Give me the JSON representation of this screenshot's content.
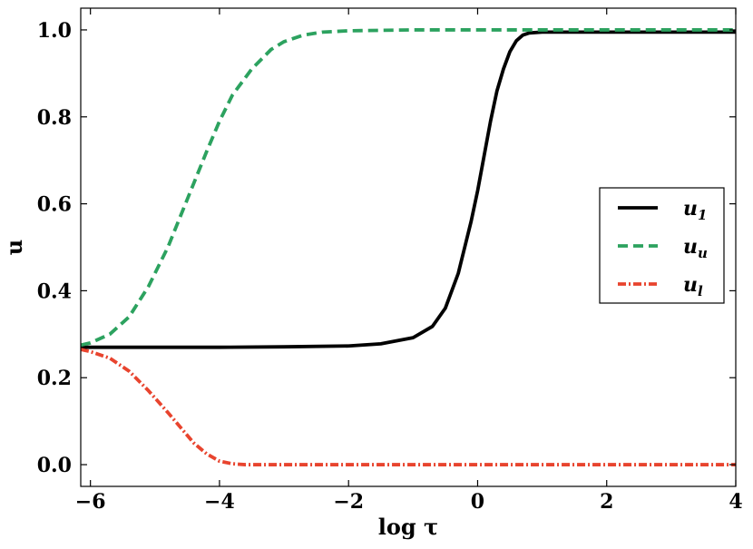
{
  "chart_data": {
    "type": "line",
    "xlabel": "log τ",
    "ylabel": "u",
    "xlim": [
      -6.15,
      4.0
    ],
    "ylim": [
      -0.05,
      1.05
    ],
    "xticks": [
      -6,
      -4,
      -2,
      0,
      2,
      4
    ],
    "xtick_labels": [
      "−6",
      "−4",
      "−2",
      "0",
      "2",
      "4"
    ],
    "yticks": [
      0.0,
      0.2,
      0.4,
      0.6,
      0.8,
      1.0
    ],
    "ytick_labels": [
      "0.0",
      "0.2",
      "0.4",
      "0.6",
      "0.8",
      "1.0"
    ],
    "grid": false,
    "legend_position": "center-right",
    "series": [
      {
        "name": "u1",
        "label_main": "u",
        "label_sub": "1",
        "color": "#000000",
        "style": "solid",
        "x": [
          -6.15,
          -5,
          -4,
          -3,
          -2,
          -1.5,
          -1.0,
          -0.7,
          -0.5,
          -0.3,
          -0.1,
          0.0,
          0.1,
          0.2,
          0.3,
          0.4,
          0.5,
          0.6,
          0.7,
          0.8,
          1.0,
          1.5,
          2,
          3,
          4
        ],
        "y": [
          0.27,
          0.27,
          0.27,
          0.271,
          0.273,
          0.278,
          0.292,
          0.318,
          0.36,
          0.44,
          0.56,
          0.63,
          0.71,
          0.79,
          0.86,
          0.91,
          0.95,
          0.975,
          0.988,
          0.993,
          0.995,
          0.995,
          0.995,
          0.995,
          0.995
        ]
      },
      {
        "name": "uu",
        "label_main": "u",
        "label_sub": "u",
        "color": "#2ca25f",
        "style": "dashed",
        "x": [
          -6.15,
          -6.0,
          -5.7,
          -5.4,
          -5.1,
          -4.8,
          -4.5,
          -4.2,
          -4.0,
          -3.8,
          -3.5,
          -3.2,
          -3.0,
          -2.7,
          -2.4,
          -2.0,
          -1.5,
          -1.0,
          0,
          1,
          2,
          3,
          4
        ],
        "y": [
          0.275,
          0.28,
          0.3,
          0.34,
          0.41,
          0.5,
          0.61,
          0.72,
          0.79,
          0.85,
          0.91,
          0.955,
          0.973,
          0.988,
          0.995,
          0.998,
          0.999,
          1.0,
          1.0,
          1.0,
          1.0,
          1.0,
          1.0
        ]
      },
      {
        "name": "ul",
        "label_main": "u",
        "label_sub": "l",
        "color": "#e8442e",
        "style": "dashdot",
        "x": [
          -6.15,
          -6.0,
          -5.7,
          -5.4,
          -5.1,
          -4.8,
          -4.6,
          -4.4,
          -4.2,
          -4.0,
          -3.8,
          -3.6,
          -3.4,
          -3.0,
          -2,
          0,
          2,
          4
        ],
        "y": [
          0.265,
          0.26,
          0.245,
          0.215,
          0.17,
          0.12,
          0.085,
          0.05,
          0.025,
          0.008,
          0.002,
          0.0,
          0.0,
          0.0,
          0.0,
          0.0,
          0.0,
          0.0
        ]
      }
    ]
  }
}
